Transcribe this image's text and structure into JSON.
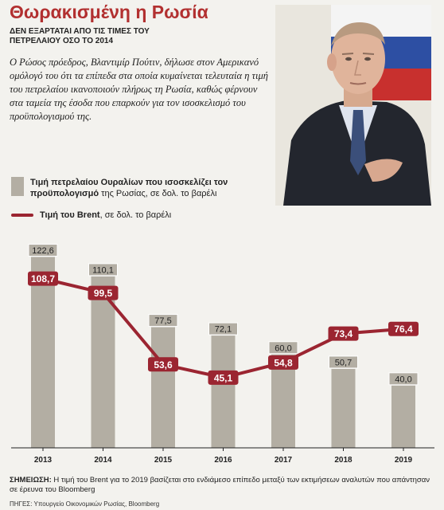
{
  "header": {
    "title": "Θωρακισμένη η Ρωσία",
    "subtitle": "ΔΕΝ ΕΞΑΡΤΑΤΑΙ ΑΠΟ ΤΙΣ ΤΙΜΕΣ ΤΟΥ ΠΕΤΡΕΛΑΙΟΥ ΟΣΟ ΤΟ 2014",
    "intro": "Ο Ρώσος πρόεδρος, Βλαντιμίρ Πούτιν, δήλωσε στον Αμερικανό ομόλογό του ότι τα επίπεδα στα οποία κυμαίνεται τελευταία η τιμή του πετρελαίου ικανοποιούν πλήρως τη Ρωσία, καθώς φέρνουν στα ταμεία της έσοδα που επαρκούν για τον ισοσκελισμό του προϋπολογισμού της."
  },
  "legend": {
    "bar_bold": "Τιμή πετρελαίου Ουραλίων που ισοσκελίζει τον προϋπολογισμό",
    "bar_rest": " της Ρωσίας, σε δολ. το βαρέλι",
    "line_bold": "Τιμή του Brent",
    "line_rest": ", σε δολ. το βαρέλι"
  },
  "footer": {
    "note_label": "ΣΗΜΕΙΩΣΗ:",
    "note_text": " Η τιμή του Brent για το 2019 βασίζεται στο ενδιάμεσο επίπεδο μεταξύ των εκτιμήσεων αναλυτών που απάντησαν σε έρευνα του Bloomberg",
    "source": "ΠΗΓΕΣ: Υπουργείο Οικονομικών Ρωσίας, Bloomberg"
  },
  "colors": {
    "bar": "#b3aea3",
    "line": "#9b2531",
    "title": "#b23030",
    "background": "#f3f2ee"
  },
  "chart_data": {
    "type": "bar",
    "categories": [
      "2013",
      "2014",
      "2015",
      "2016",
      "2017",
      "2018",
      "2019"
    ],
    "series": [
      {
        "name": "Τιμή πετρελαίου Ουραλίων που ισοσκελίζει τον προϋπολογισμό της Ρωσίας, σε δολ. το βαρέλι",
        "type": "bar",
        "values": [
          122.6,
          110.1,
          77.5,
          72.1,
          60.0,
          50.7,
          40.0
        ],
        "labels": [
          "122,6",
          "110,1",
          "77,5",
          "72,1",
          "60,0",
          "50,7",
          "40,0"
        ]
      },
      {
        "name": "Τιμή του Brent, σε δολ. το βαρέλι",
        "type": "line",
        "values": [
          108.7,
          99.5,
          53.6,
          45.1,
          54.8,
          73.4,
          76.4
        ],
        "labels": [
          "108,7",
          "99,5",
          "53,6",
          "45,1",
          "54,8",
          "73,4",
          "76,4"
        ]
      }
    ],
    "ylim": [
      0,
      130
    ],
    "grid": false,
    "legend_position": "top-left"
  }
}
